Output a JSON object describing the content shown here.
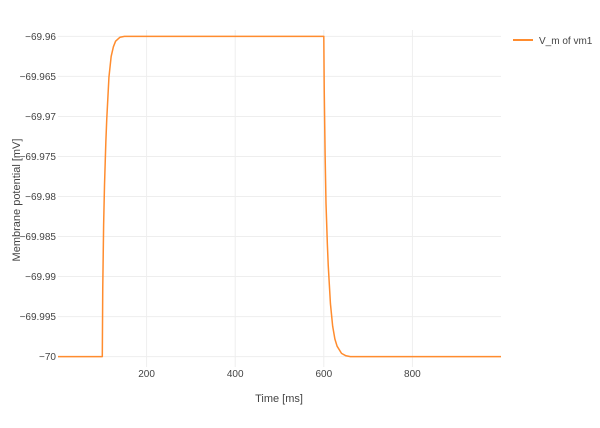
{
  "chart_data": {
    "type": "line",
    "xlabel": "Time [ms]",
    "ylabel": "Membrane potential [mV]",
    "xlim": [
      0,
      1000
    ],
    "ylim": [
      -70.0013,
      -69.9592
    ],
    "x_ticks": [
      200,
      400,
      600,
      800
    ],
    "y_ticks": [
      -69.96,
      -69.965,
      -69.97,
      -69.975,
      -69.98,
      -69.985,
      -69.99,
      -69.995,
      -70
    ],
    "y_tick_labels": [
      "−69.96",
      "−69.965",
      "−69.97",
      "−69.975",
      "−69.98",
      "−69.985",
      "−69.99",
      "−69.995",
      "−70"
    ],
    "x_tick_labels": [
      "200",
      "400",
      "600",
      "800"
    ],
    "grid": true,
    "legend_position": "top-right",
    "series": [
      {
        "name": "V_m of vm1",
        "color": "#ff8c2e",
        "x": [
          0,
          100,
          101,
          103,
          105,
          108,
          110,
          115,
          120,
          125,
          130,
          140,
          150,
          160,
          180,
          200,
          300,
          400,
          500,
          600,
          601,
          603,
          605,
          608,
          610,
          615,
          620,
          625,
          630,
          640,
          650,
          660,
          680,
          700,
          800,
          900,
          1000
        ],
        "y": [
          -70,
          -70,
          -69.9916,
          -69.9835,
          -69.9785,
          -69.9732,
          -69.9704,
          -69.9651,
          -69.9625,
          -69.9613,
          -69.9606,
          -69.9601,
          -69.96,
          -69.96,
          -69.96,
          -69.96,
          -69.96,
          -69.96,
          -69.96,
          -69.96,
          -69.9668,
          -69.9749,
          -69.9809,
          -69.9859,
          -69.9886,
          -69.9934,
          -69.9962,
          -69.9978,
          -69.9987,
          -69.9996,
          -69.9999,
          -70,
          -70,
          -70,
          -70,
          -70,
          -70
        ]
      }
    ]
  }
}
